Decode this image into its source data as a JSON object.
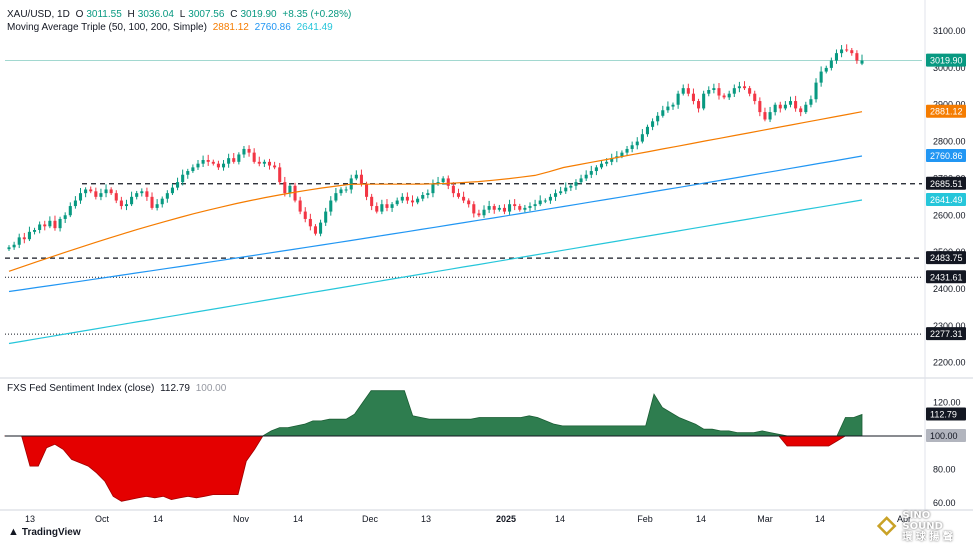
{
  "header": {
    "symbol": "XAU/USD, 1D",
    "open_label": "O",
    "open": "3011.55",
    "high_label": "H",
    "high": "3036.04",
    "low_label": "L",
    "low": "3007.56",
    "close_label": "C",
    "close": "3019.90",
    "change": "+8.35 (+0.28%)",
    "ma_title": "Moving Average Triple (50, 100, 200, Simple)",
    "ma50_value": "2881.12",
    "ma100_value": "2760.86",
    "ma200_value": "2641.49"
  },
  "indicator_header": {
    "title": "FXS Fed Sentiment Index (close)",
    "value": "112.79",
    "baseline": "100.00"
  },
  "branding": {
    "tradingview": "TradingView",
    "watermark_line1": "SINO SOUND",
    "watermark_line2": "環 球 揚 聲"
  },
  "colors": {
    "up": "#089981",
    "down": "#f23645",
    "ma50": "#f57c00",
    "ma100": "#2196f3",
    "ma200": "#26c6da",
    "sentiment_pos": "#2e7d4f",
    "sentiment_neg": "#e40000"
  },
  "chart_data": [
    {
      "type": "candlestick",
      "title": "XAU/USD, 1D",
      "ylim": [
        2180,
        3130
      ],
      "y_ticks": [
        2200,
        2300,
        2400,
        2500,
        2600,
        2700,
        2800,
        2900,
        3000,
        3100
      ],
      "x_tick_labels": [
        "13",
        "Oct",
        "14",
        "Nov",
        "14",
        "Dec",
        "13",
        "2025",
        "14",
        "Feb",
        "14",
        "Mar",
        "14",
        "Apr"
      ],
      "price_tags": [
        {
          "value": 3019.9,
          "label": "3019.90",
          "color": "#089981",
          "line": "solid-teal"
        },
        {
          "value": 2881.12,
          "label": "2881.12",
          "color": "#f57c00",
          "line": "none"
        },
        {
          "value": 2760.86,
          "label": "2760.86",
          "color": "#2196f3",
          "line": "none"
        },
        {
          "value": 2685.51,
          "label": "2685.51",
          "color": "#131722",
          "line": "dashed"
        },
        {
          "value": 2641.49,
          "label": "2641.49",
          "color": "#26c6da",
          "line": "none"
        },
        {
          "value": 2483.75,
          "label": "2483.75",
          "color": "#131722",
          "line": "dashed"
        },
        {
          "value": 2431.61,
          "label": "2431.61",
          "color": "#131722",
          "line": "dotted"
        },
        {
          "value": 2277.31,
          "label": "2277.31",
          "color": "#131722",
          "line": "dotted"
        }
      ],
      "close_path": [
        2513,
        2520,
        2540,
        2535,
        2555,
        2560,
        2575,
        2570,
        2585,
        2565,
        2590,
        2600,
        2625,
        2640,
        2660,
        2670,
        2665,
        2650,
        2660,
        2670,
        2660,
        2640,
        2625,
        2630,
        2650,
        2660,
        2665,
        2650,
        2620,
        2630,
        2645,
        2660,
        2675,
        2690,
        2710,
        2720,
        2730,
        2740,
        2750,
        2745,
        2740,
        2730,
        2740,
        2755,
        2745,
        2765,
        2780,
        2770,
        2745,
        2740,
        2745,
        2735,
        2730,
        2690,
        2660,
        2680,
        2640,
        2610,
        2590,
        2570,
        2550,
        2580,
        2610,
        2640,
        2660,
        2670,
        2670,
        2700,
        2710,
        2685,
        2650,
        2625,
        2610,
        2630,
        2620,
        2630,
        2640,
        2650,
        2640,
        2635,
        2645,
        2655,
        2660,
        2685,
        2690,
        2700,
        2680,
        2660,
        2650,
        2640,
        2630,
        2605,
        2600,
        2615,
        2625,
        2615,
        2620,
        2610,
        2630,
        2625,
        2615,
        2620,
        2625,
        2630,
        2640,
        2640,
        2650,
        2660,
        2665,
        2675,
        2680,
        2690,
        2700,
        2710,
        2720,
        2730,
        2740,
        2745,
        2755,
        2760,
        2770,
        2780,
        2790,
        2800,
        2820,
        2840,
        2855,
        2870,
        2885,
        2895,
        2900,
        2930,
        2945,
        2930,
        2910,
        2890,
        2930,
        2940,
        2945,
        2925,
        2920,
        2930,
        2945,
        2950,
        2945,
        2930,
        2910,
        2880,
        2860,
        2880,
        2900,
        2890,
        2900,
        2910,
        2890,
        2880,
        2900,
        2915,
        2960,
        2990,
        3000,
        3020,
        3040,
        3050,
        3048,
        3040,
        3020,
        3011.55
      ],
      "last_candle": {
        "open": 3011.55,
        "high": 3036.04,
        "low": 3007.56,
        "close": 3019.9
      },
      "moving_averages": [
        {
          "name": "MA 50",
          "start": 2448,
          "end": 2881.12
        },
        {
          "name": "MA 100",
          "start": 2393,
          "end": 2760.86
        },
        {
          "name": "MA 200",
          "start": 2252,
          "end": 2641.49
        }
      ]
    },
    {
      "type": "area",
      "title": "FXS Fed Sentiment Index (close)",
      "ylim": [
        57,
        131
      ],
      "y_ticks": [
        60,
        80,
        100,
        120
      ],
      "baseline": 100,
      "last_value": 112.79,
      "values": [
        100,
        100,
        100,
        82,
        82,
        93,
        95,
        92,
        86,
        84,
        82,
        78,
        73,
        64,
        61,
        62,
        63,
        64,
        63,
        64,
        62,
        63,
        64,
        63,
        64,
        65,
        65,
        65,
        65,
        85,
        92,
        100,
        103,
        105,
        105,
        106,
        107,
        109,
        109,
        110,
        110,
        110,
        113,
        120,
        127,
        127,
        127,
        127,
        127,
        112,
        111,
        110,
        110,
        110,
        110,
        110,
        110,
        111,
        111,
        111,
        111,
        111,
        111,
        112,
        111,
        109,
        107,
        106,
        106,
        106,
        106,
        106,
        106,
        106,
        106,
        106,
        106,
        106,
        125,
        117,
        114,
        111,
        109,
        107,
        104,
        104,
        103,
        103,
        102,
        102,
        102,
        103,
        102,
        101,
        94,
        94,
        94,
        94,
        94,
        94,
        97,
        111,
        111,
        112.79
      ]
    }
  ]
}
